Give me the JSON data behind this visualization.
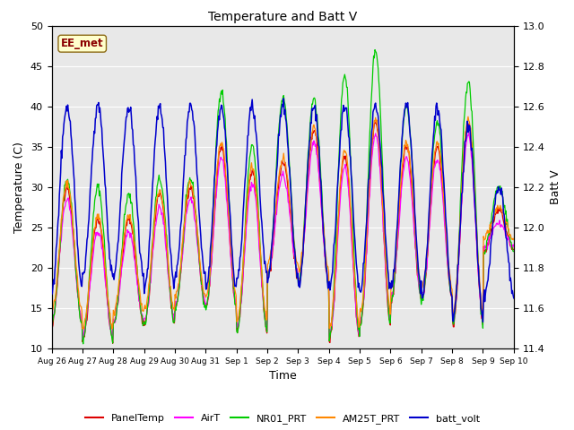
{
  "title": "Temperature and Batt V",
  "xlabel": "Time",
  "ylabel_left": "Temperature (C)",
  "ylabel_right": "Batt V",
  "ylim_left": [
    10,
    50
  ],
  "ylim_right": [
    11.4,
    13.0
  ],
  "yticks_left": [
    10,
    15,
    20,
    25,
    30,
    35,
    40,
    45,
    50
  ],
  "yticks_right": [
    11.4,
    11.6,
    11.8,
    12.0,
    12.2,
    12.4,
    12.6,
    12.8,
    13.0
  ],
  "annotation_text": "EE_met",
  "colors": {
    "PanelTemp": "#dd0000",
    "AirT": "#ff00ff",
    "NR01_PRT": "#00cc00",
    "AM25T_PRT": "#ff8800",
    "batt_volt": "#0000cc"
  },
  "legend_labels": [
    "PanelTemp",
    "AirT",
    "NR01_PRT",
    "AM25T_PRT",
    "batt_volt"
  ],
  "fig_bg_color": "#ffffff",
  "axes_bg_color": "#e8e8e8",
  "n_days": 15,
  "points_per_day": 48,
  "tick_labels": [
    "Aug 26",
    "Aug 27",
    "Aug 28",
    "Aug 29",
    "Aug 30",
    "Aug 31",
    "Sep 1",
    "Sep 2",
    "Sep 3",
    "Sep 4",
    "Sep 5",
    "Sep 6",
    "Sep 7",
    "Sep 8",
    "Sep 9",
    "Sep 10"
  ],
  "day_peaks_nr01": [
    31,
    30,
    29,
    31,
    31,
    42,
    35,
    41,
    41,
    44,
    47,
    40,
    38,
    43,
    30
  ],
  "day_peaks_panel": [
    30,
    26,
    26,
    29,
    30,
    35,
    32,
    33,
    37,
    34,
    38,
    35,
    35,
    38,
    27
  ],
  "day_troughs": [
    13,
    11,
    13,
    13,
    15,
    15,
    12,
    19,
    18,
    11,
    13,
    16,
    16,
    13,
    22
  ],
  "batt_peaks": [
    12.6,
    12.6,
    12.6,
    12.6,
    12.6,
    12.6,
    12.6,
    12.6,
    12.6,
    12.6,
    12.6,
    12.6,
    12.6,
    12.5,
    12.2
  ],
  "batt_troughs": [
    11.7,
    11.75,
    11.75,
    11.7,
    11.75,
    11.7,
    11.75,
    11.75,
    11.7,
    11.7,
    11.7,
    11.7,
    11.65,
    11.55,
    11.65
  ]
}
